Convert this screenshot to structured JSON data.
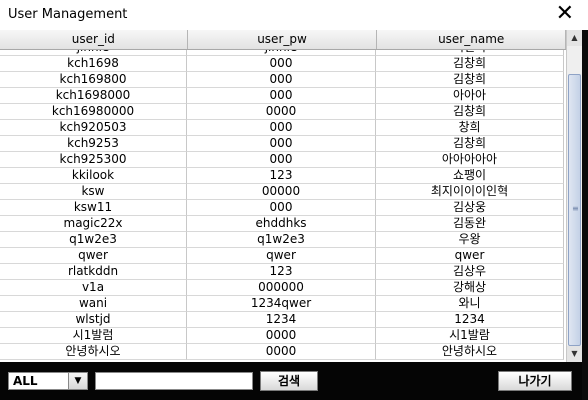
{
  "window": {
    "title": "User Management",
    "close_glyph": "✕"
  },
  "table": {
    "columns": [
      "user_id",
      "user_pw",
      "user_name"
    ],
    "rows": [
      [
        "jinnie",
        "jinnie",
        "이진희"
      ],
      [
        "kch1698",
        "000",
        "김창희"
      ],
      [
        "kch169800",
        "000",
        "김창희"
      ],
      [
        "kch1698000",
        "000",
        "아아아"
      ],
      [
        "kch16980000",
        "0000",
        "김창희"
      ],
      [
        "kch920503",
        "000",
        "창희"
      ],
      [
        "kch9253",
        "000",
        "김창희"
      ],
      [
        "kch925300",
        "000",
        "아아아아아"
      ],
      [
        "kkilook",
        "123",
        "쇼팽이"
      ],
      [
        "ksw",
        "00000",
        "최지이이이인혁"
      ],
      [
        "ksw11",
        "000",
        "김상웅"
      ],
      [
        "magic22x",
        "ehddhks",
        "김동완"
      ],
      [
        "q1w2e3",
        "q1w2e3",
        "우왕"
      ],
      [
        "qwer",
        "qwer",
        "qwer"
      ],
      [
        "rlatkddn",
        "123",
        "김상우"
      ],
      [
        "v1a",
        "000000",
        "강해상"
      ],
      [
        "wani",
        "1234qwer",
        "와니"
      ],
      [
        "wlstjd",
        "1234",
        "1234"
      ],
      [
        "시1발럼",
        "0000",
        "시1발람"
      ],
      [
        "안녕하시오",
        "0000",
        "안녕하시오"
      ]
    ]
  },
  "scrollbar": {
    "up_glyph": "▲",
    "down_glyph": "▼",
    "grip_glyph": "≡"
  },
  "bottom": {
    "filter_value": "ALL",
    "filter_arrow": "▼",
    "search_value": "",
    "search_button": "검색",
    "exit_button": "나가기"
  }
}
